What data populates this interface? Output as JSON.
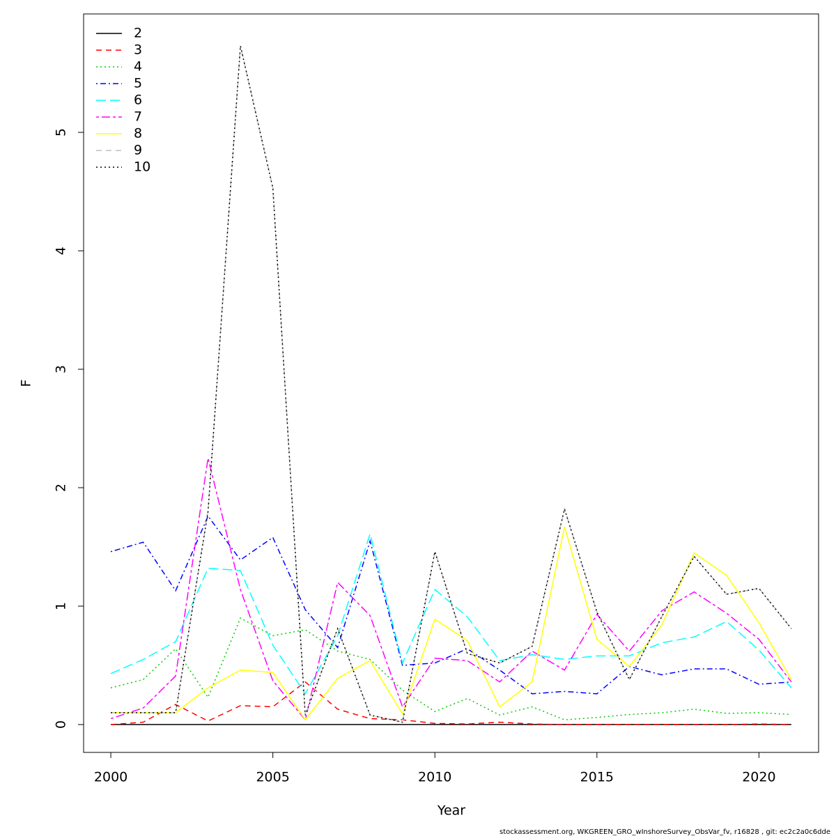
{
  "chart_data": {
    "type": "line",
    "x": [
      2000,
      2001,
      2002,
      2003,
      2004,
      2005,
      2006,
      2007,
      2008,
      2009,
      2010,
      2011,
      2012,
      2013,
      2014,
      2015,
      2016,
      2017,
      2018,
      2019,
      2020,
      2021
    ],
    "xlabel": "Year",
    "ylabel": "F",
    "xlim": [
      1999.16,
      2021.84
    ],
    "ylim": [
      -0.235,
      6.0
    ],
    "xticks": [
      2000,
      2005,
      2010,
      2015,
      2020
    ],
    "yticks": [
      0,
      1,
      2,
      3,
      4,
      5
    ],
    "legend": "top-left",
    "series": [
      {
        "name": "2",
        "color": "#000000",
        "dash": "solid",
        "values": [
          0,
          0,
          0,
          0,
          0,
          0,
          0,
          0,
          0,
          0,
          0,
          0,
          0,
          0,
          0,
          0,
          0,
          0,
          0,
          0,
          0,
          0
        ]
      },
      {
        "name": "3",
        "color": "#ff0000",
        "dash": "dashed",
        "values": [
          0,
          0.02,
          0.17,
          0.03,
          0.16,
          0.15,
          0.36,
          0.13,
          0.05,
          0.04,
          0.01,
          0.005,
          0.02,
          0.005,
          0,
          0,
          0,
          0,
          0,
          0,
          0.005,
          0
        ]
      },
      {
        "name": "4",
        "color": "#00cd00",
        "dash": "dotted",
        "values": [
          0.31,
          0.38,
          0.64,
          0.23,
          0.9,
          0.75,
          0.8,
          0.62,
          0.55,
          0.29,
          0.11,
          0.22,
          0.08,
          0.15,
          0.04,
          0.06,
          0.085,
          0.1,
          0.13,
          0.095,
          0.1,
          0.085
        ]
      },
      {
        "name": "5",
        "color": "#0000ff",
        "dash": "dotdash",
        "values": [
          1.46,
          1.54,
          1.13,
          1.76,
          1.39,
          1.58,
          0.97,
          0.65,
          1.55,
          0.5,
          0.52,
          0.64,
          0.46,
          0.26,
          0.28,
          0.26,
          0.49,
          0.42,
          0.47,
          0.47,
          0.34,
          0.36
        ]
      },
      {
        "name": "6",
        "color": "#00ffff",
        "dash": "longdash",
        "values": [
          0.43,
          0.55,
          0.7,
          1.32,
          1.3,
          0.67,
          0.26,
          0.75,
          1.61,
          0.52,
          1.14,
          0.91,
          0.54,
          0.59,
          0.55,
          0.58,
          0.58,
          0.69,
          0.74,
          0.87,
          0.63,
          0.31
        ]
      },
      {
        "name": "7",
        "color": "#ff00ff",
        "dash": "twodash",
        "values": [
          0.05,
          0.14,
          0.41,
          2.25,
          1.14,
          0.37,
          0.04,
          1.2,
          0.92,
          0.15,
          0.56,
          0.54,
          0.36,
          0.62,
          0.46,
          0.93,
          0.62,
          0.96,
          1.12,
          0.94,
          0.72,
          0.36
        ]
      },
      {
        "name": "8",
        "color": "#ffff00",
        "dash": "solid",
        "values": [
          0.1,
          0.1,
          0.1,
          0.31,
          0.46,
          0.44,
          0.04,
          0.39,
          0.54,
          0.09,
          0.89,
          0.71,
          0.15,
          0.36,
          1.67,
          0.72,
          0.49,
          0.84,
          1.45,
          1.26,
          0.86,
          0.38
        ]
      },
      {
        "name": "9",
        "color": "#bebebe",
        "dash": "dashed",
        "values": [
          0.1,
          0.1,
          0.1,
          1.8,
          5.73,
          4.53,
          0.08,
          0.81,
          0.08,
          0.02,
          1.46,
          0.6,
          0.52,
          0.66,
          1.82,
          0.95,
          0.38,
          0.91,
          1.42,
          1.1,
          1.15,
          0.81
        ]
      },
      {
        "name": "10",
        "color": "#000000",
        "dash": "dotted",
        "values": [
          0.1,
          0.1,
          0.1,
          1.8,
          5.73,
          4.53,
          0.08,
          0.81,
          0.08,
          0.02,
          1.46,
          0.6,
          0.52,
          0.66,
          1.82,
          0.95,
          0.38,
          0.91,
          1.42,
          1.1,
          1.15,
          0.81
        ]
      }
    ]
  },
  "footer": "stockassessment.org, WKGREEN_GRO_wInshoreSurvey_ObsVar_fv, r16828 , git: ec2c2a0c6dde"
}
